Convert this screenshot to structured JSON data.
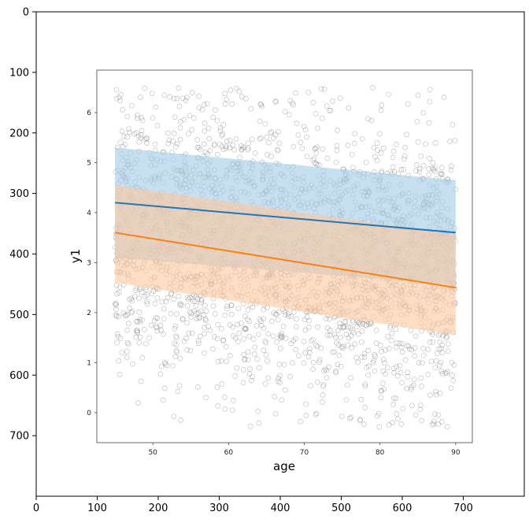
{
  "chart_data": [
    {
      "type": "image",
      "x_ticks": [
        "0",
        "100",
        "200",
        "300",
        "400",
        "500",
        "600",
        "700"
      ],
      "y_ticks": [
        "0",
        "100",
        "200",
        "300",
        "400",
        "500",
        "600",
        "700"
      ],
      "xlim": [
        0,
        800
      ],
      "ylim": [
        800,
        0
      ]
    },
    {
      "type": "scatter",
      "xlabel": "age",
      "ylabel": "y1",
      "xlim": [
        42.6,
        92.2
      ],
      "ylim": [
        -0.6,
        6.85
      ],
      "x_ticks": [
        "50",
        "60",
        "70",
        "80",
        "90"
      ],
      "y_ticks": [
        "0",
        "1",
        "2",
        "3",
        "4",
        "5",
        "6"
      ],
      "grid": false,
      "points": {
        "marker": "open circle",
        "color": "#555555",
        "count_approx": 4000,
        "x_range": [
          45,
          90
        ],
        "y_range": [
          -0.3,
          6.5
        ]
      },
      "series": [
        {
          "line_color": "#1f77b4",
          "band_color": "#a3cbe8",
          "line": {
            "x": [
              45,
              90
            ],
            "y": [
              4.2,
              3.6
            ]
          },
          "band_upper": {
            "x": [
              45,
              90
            ],
            "y": [
              5.3,
              4.65
            ]
          },
          "band_lower": {
            "x": [
              45,
              90
            ],
            "y": [
              3.1,
              2.55
            ]
          }
        },
        {
          "line_color": "#ff7f0e",
          "band_color": "#fdc9a0",
          "line": {
            "x": [
              45,
              90
            ],
            "y": [
              3.6,
              2.5
            ]
          },
          "band_upper": {
            "x": [
              45,
              90
            ],
            "y": [
              4.55,
              3.55
            ]
          },
          "band_lower": {
            "x": [
              45,
              90
            ],
            "y": [
              2.6,
              1.55
            ]
          }
        }
      ]
    }
  ]
}
